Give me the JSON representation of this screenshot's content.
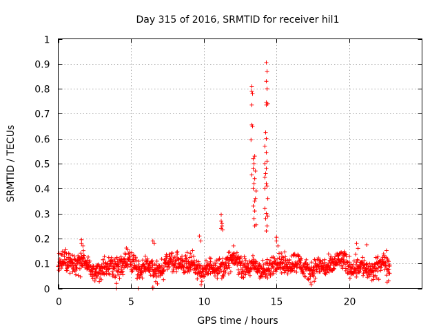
{
  "chart_data": {
    "type": "scatter",
    "title": "Day 315 of 2016, SRMTID for receiver hil1",
    "xlabel": "GPS time / hours",
    "ylabel": "SRMTID / TECUs",
    "xlim": [
      0,
      25
    ],
    "ylim": [
      0,
      1
    ],
    "xticks": [
      "0",
      "5",
      "10",
      "15",
      "20"
    ],
    "xtick_values": [
      0,
      5,
      10,
      15,
      20
    ],
    "yticks": [
      "0",
      "0.1",
      "0.2",
      "0.3",
      "0.4",
      "0.5",
      "0.6",
      "0.7",
      "0.8",
      "0.9",
      "1"
    ],
    "ytick_values": [
      0,
      0.1,
      0.2,
      0.3,
      0.4,
      0.5,
      0.6,
      0.7,
      0.8,
      0.9,
      1.0
    ],
    "grid": true,
    "marker": "+",
    "color": "#ff0000",
    "background_band": {
      "x_range": [
        0,
        22.8
      ],
      "y_center": 0.09,
      "y_spread": 0.045
    },
    "series": [
      {
        "name": "SRMTID",
        "points": [
          [
            1.6,
            0.195
          ],
          [
            1.6,
            0.18
          ],
          [
            1.7,
            0.17
          ],
          [
            4.0,
            0.0
          ],
          [
            4.0,
            0.02
          ],
          [
            5.5,
            0.0
          ],
          [
            6.5,
            0.0
          ],
          [
            6.5,
            0.005
          ],
          [
            6.5,
            0.19
          ],
          [
            6.6,
            0.18
          ],
          [
            9.7,
            0.21
          ],
          [
            9.8,
            0.19
          ],
          [
            11.2,
            0.295
          ],
          [
            11.2,
            0.27
          ],
          [
            11.25,
            0.25
          ],
          [
            11.2,
            0.24
          ],
          [
            11.3,
            0.235
          ],
          [
            11.25,
            0.26
          ],
          [
            13.3,
            0.81
          ],
          [
            13.3,
            0.79
          ],
          [
            13.35,
            0.78
          ],
          [
            13.3,
            0.735
          ],
          [
            13.3,
            0.655
          ],
          [
            13.35,
            0.65
          ],
          [
            13.25,
            0.595
          ],
          [
            13.5,
            0.53
          ],
          [
            13.45,
            0.5
          ],
          [
            13.4,
            0.48
          ],
          [
            13.5,
            0.44
          ],
          [
            13.45,
            0.42
          ],
          [
            13.4,
            0.4
          ],
          [
            13.55,
            0.36
          ],
          [
            13.5,
            0.35
          ],
          [
            13.4,
            0.33
          ],
          [
            13.5,
            0.31
          ],
          [
            13.45,
            0.28
          ],
          [
            13.6,
            0.255
          ],
          [
            13.5,
            0.25
          ],
          [
            13.3,
            0.455
          ],
          [
            13.6,
            0.39
          ],
          [
            13.55,
            0.47
          ],
          [
            13.4,
            0.52
          ],
          [
            14.3,
            0.905
          ],
          [
            14.35,
            0.87
          ],
          [
            14.3,
            0.83
          ],
          [
            14.35,
            0.8
          ],
          [
            14.3,
            0.745
          ],
          [
            14.4,
            0.74
          ],
          [
            14.3,
            0.735
          ],
          [
            14.25,
            0.625
          ],
          [
            14.3,
            0.6
          ],
          [
            14.2,
            0.57
          ],
          [
            14.3,
            0.545
          ],
          [
            14.35,
            0.51
          ],
          [
            14.2,
            0.5
          ],
          [
            14.3,
            0.48
          ],
          [
            14.25,
            0.46
          ],
          [
            14.2,
            0.445
          ],
          [
            14.3,
            0.42
          ],
          [
            14.35,
            0.41
          ],
          [
            14.2,
            0.4
          ],
          [
            14.4,
            0.36
          ],
          [
            14.2,
            0.32
          ],
          [
            14.3,
            0.3
          ],
          [
            14.25,
            0.28
          ],
          [
            14.4,
            0.29
          ],
          [
            14.35,
            0.25
          ],
          [
            14.3,
            0.23
          ],
          [
            15.0,
            0.205
          ],
          [
            15.0,
            0.19
          ],
          [
            15.1,
            0.17
          ],
          [
            20.5,
            0.18
          ],
          [
            20.6,
            0.16
          ],
          [
            21.2,
            0.175
          ],
          [
            22.6,
            0.025
          ],
          [
            22.7,
            0.03
          ]
        ]
      }
    ]
  }
}
